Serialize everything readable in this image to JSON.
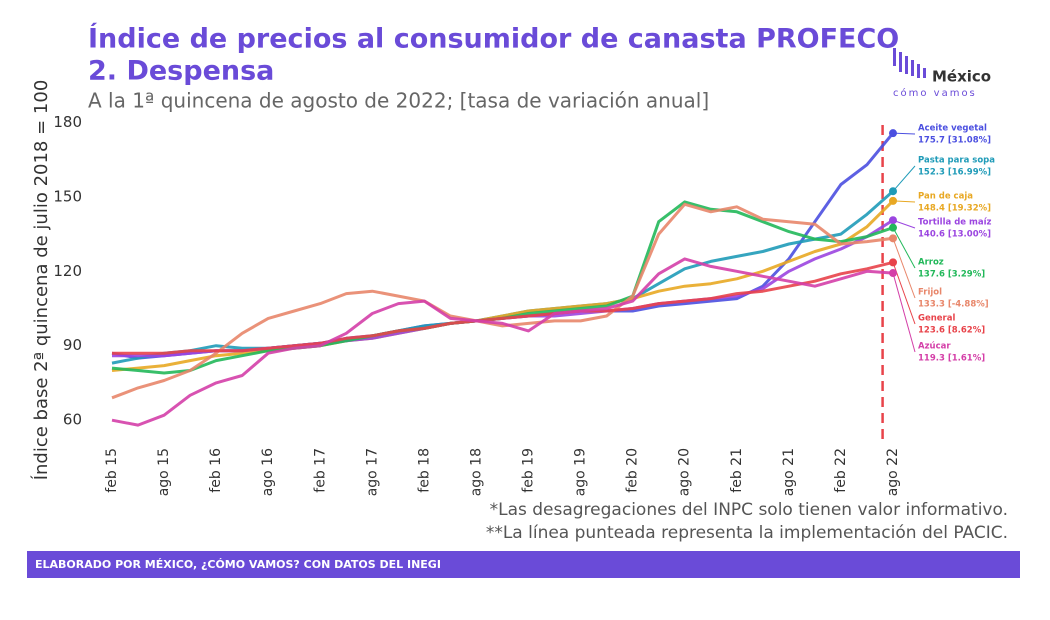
{
  "chart_data": {
    "type": "line",
    "title": "Índice de precios al consumidor de canasta PROFECO",
    "subtitle_1": "2. Despensa",
    "subtitle_2": "A la 1ª quincena de agosto de 2022; [tasa de variación anual]",
    "y_label": "Índice base 2ª quincena de julio 2018 = 100",
    "notes": [
      "*Las desagregaciones del INPC solo tienen valor informativo.",
      "**La línea punteada representa la implementación del PACIC."
    ],
    "footer": "ELABORADO POR MÉXICO, ¿CÓMO VAMOS? CON DATOS DEL INEGI",
    "logo": [
      "México",
      "cómo vamos"
    ],
    "categories": [
      "feb 15",
      null,
      "ago 15",
      null,
      "feb 16",
      null,
      "ago 16",
      null,
      "feb 17",
      null,
      "ago 17",
      null,
      "feb 18",
      null,
      "ago 18",
      null,
      "feb 19",
      null,
      "ago 19",
      null,
      "feb 20",
      null,
      "ago 20",
      null,
      "feb 21",
      null,
      "ago 21",
      null,
      "feb 22",
      null,
      "ago 22"
    ],
    "ylim": [
      52,
      181
    ],
    "yticks": [
      60,
      90,
      120,
      150,
      180
    ],
    "grid": false,
    "reference_line": {
      "at": 29.6,
      "color": "#e8434a",
      "dashed": true
    },
    "series": [
      {
        "name": "Aceite vegetal",
        "end_label": "175.7 [31.08%]",
        "color": "#4b4fe0",
        "values": [
          87,
          85,
          86,
          87,
          88,
          88,
          89,
          90,
          91,
          93,
          94,
          96,
          98,
          99,
          100,
          101,
          102,
          103,
          104,
          104,
          104,
          106,
          107,
          108,
          109,
          114,
          125,
          140,
          155,
          163,
          175.7
        ]
      },
      {
        "name": "Pasta para sopa",
        "end_label": "152.3 [16.99%]",
        "color": "#1f9bb8",
        "values": [
          83,
          85,
          87,
          88,
          90,
          89,
          89,
          90,
          91,
          92,
          94,
          96,
          98,
          99,
          100,
          102,
          104,
          105,
          106,
          107,
          109,
          115,
          121,
          124,
          126,
          128,
          131,
          133,
          135,
          143,
          152.3
        ]
      },
      {
        "name": "Pan de caja",
        "end_label": "148.4 [19.32%]",
        "color": "#e8a823",
        "values": [
          80,
          81,
          82,
          84,
          86,
          87,
          88,
          89,
          90,
          92,
          93,
          95,
          97,
          99,
          100,
          102,
          104,
          105,
          106,
          107,
          109,
          112,
          114,
          115,
          117,
          120,
          124,
          128,
          131,
          138,
          148.4
        ]
      },
      {
        "name": "Tortilla de maíz",
        "end_label": "140.6 [13.00%]",
        "color": "#9b45e0",
        "values": [
          86,
          86,
          86,
          87,
          88,
          88,
          89,
          90,
          91,
          92,
          93,
          95,
          97,
          99,
          100,
          101,
          102,
          102,
          103,
          104,
          105,
          107,
          108,
          109,
          110,
          113,
          120,
          125,
          129,
          134,
          140.6
        ]
      },
      {
        "name": "Arroz",
        "end_label": "137.6 [3.29%]",
        "color": "#22b85a",
        "values": [
          81,
          80,
          79,
          80,
          84,
          86,
          88,
          89,
          90,
          92,
          94,
          96,
          97,
          99,
          100,
          101,
          103,
          104,
          105,
          106,
          110,
          140,
          148,
          145,
          144,
          140,
          136,
          133,
          132,
          134,
          137.6
        ]
      },
      {
        "name": "Frijol",
        "end_label": "133.3 [-4.88%]",
        "color": "#e8866a",
        "values": [
          69,
          73,
          76,
          80,
          87,
          95,
          101,
          104,
          107,
          111,
          112,
          110,
          108,
          102,
          100,
          98,
          99,
          100,
          100,
          102,
          110,
          135,
          147,
          144,
          146,
          141,
          140,
          139,
          131,
          132,
          133.3
        ]
      },
      {
        "name": "General",
        "end_label": "123.6 [8.62%]",
        "color": "#e8434a",
        "values": [
          87,
          87,
          87,
          88,
          88,
          88,
          89,
          90,
          91,
          93,
          94,
          96,
          97,
          99,
          100,
          101,
          102,
          103,
          104,
          104,
          105,
          107,
          108,
          109,
          111,
          112,
          114,
          116,
          119,
          121,
          123.6
        ]
      },
      {
        "name": "Azúcar",
        "end_label": "119.3 [1.61%]",
        "color": "#d43fa8",
        "values": [
          60,
          58,
          62,
          70,
          75,
          78,
          87,
          89,
          90,
          95,
          103,
          107,
          108,
          101,
          100,
          99,
          96,
          103,
          104,
          105,
          108,
          119,
          125,
          122,
          120,
          118,
          116,
          114,
          117,
          120,
          119.3
        ]
      }
    ]
  }
}
